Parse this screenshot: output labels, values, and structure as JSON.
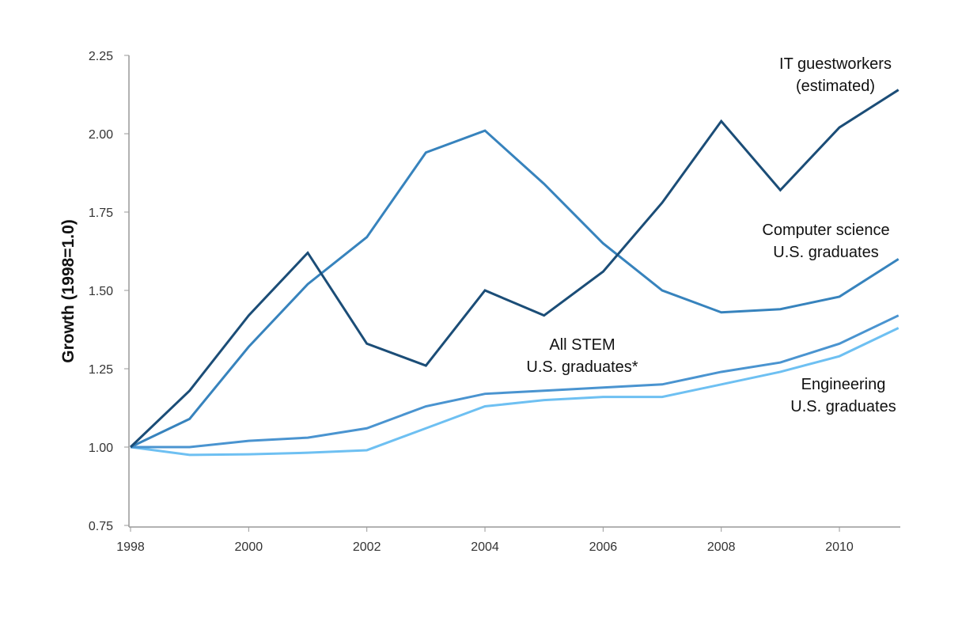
{
  "chart_data": {
    "type": "line",
    "title": "",
    "xlabel": "",
    "ylabel": "Growth (1998=1.0)",
    "xlim": [
      1998,
      2011
    ],
    "ylim": [
      0.75,
      2.25
    ],
    "x_ticks": [
      "1998",
      "2000",
      "2002",
      "2004",
      "2006",
      "2008",
      "2010"
    ],
    "y_ticks": [
      "0.75",
      "1.00",
      "1.25",
      "1.50",
      "1.75",
      "2.00",
      "2.25"
    ],
    "grid": false,
    "legend": "none (direct labels)",
    "x": [
      1998,
      1999,
      2000,
      2001,
      2002,
      2003,
      2004,
      2005,
      2006,
      2007,
      2008,
      2009,
      2010,
      2011
    ],
    "series": [
      {
        "name": "IT guestworkers (estimated)",
        "label_lines": [
          "IT guestworkers",
          "(estimated)"
        ],
        "color": "#1b4d77",
        "values": [
          1.0,
          1.18,
          1.42,
          1.62,
          1.33,
          1.26,
          1.5,
          1.42,
          1.56,
          1.78,
          2.04,
          1.82,
          2.02,
          2.14
        ]
      },
      {
        "name": "Computer science U.S. graduates",
        "label_lines": [
          "Computer science",
          "U.S. graduates"
        ],
        "color": "#3783bd",
        "values": [
          1.0,
          1.09,
          1.32,
          1.52,
          1.67,
          1.94,
          2.01,
          1.84,
          1.65,
          1.5,
          1.43,
          1.44,
          1.48,
          1.6
        ]
      },
      {
        "name": "All STEM U.S. graduates*",
        "label_lines": [
          "All STEM",
          "U.S. graduates*"
        ],
        "color": "#4a94d0",
        "values": [
          1.0,
          1.0,
          1.02,
          1.03,
          1.06,
          1.13,
          1.17,
          1.18,
          1.19,
          1.2,
          1.24,
          1.27,
          1.33,
          1.42
        ]
      },
      {
        "name": "Engineering U.S. graduates",
        "label_lines": [
          "Engineering",
          "U.S. graduates"
        ],
        "color": "#6ec0f2",
        "values": [
          1.0,
          0.975,
          0.977,
          0.982,
          0.99,
          1.06,
          1.13,
          1.15,
          1.16,
          1.16,
          1.2,
          1.24,
          1.29,
          1.38
        ]
      }
    ]
  }
}
